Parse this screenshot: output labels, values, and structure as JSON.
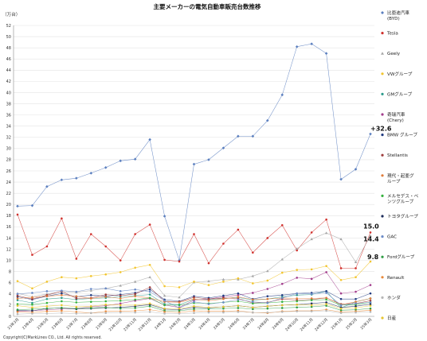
{
  "chart_data": {
    "type": "line",
    "title": "主要メーカーの電気自動車販売台数推移",
    "ylabel": "（万台）",
    "xlabel": "",
    "ylim": [
      0,
      52
    ],
    "yticks": [
      0,
      2,
      4,
      6,
      8,
      10,
      12,
      14,
      16,
      18,
      20,
      22,
      24,
      26,
      28,
      30,
      32,
      34,
      36,
      38,
      40,
      42,
      44,
      46,
      48,
      50,
      52
    ],
    "grid": "horizontal",
    "legend": "right",
    "copyright": "Copyright(C)MarkLines CO., Ltd. All rights reserved.",
    "categories": [
      "23年3月",
      "23年4月",
      "23年5月",
      "23年6月",
      "23年7月",
      "23年8月",
      "23年9月",
      "23年10月",
      "23年11月",
      "23年12月",
      "24年1月",
      "24年2月",
      "24年3月",
      "24年4月",
      "24年5月",
      "24年6月",
      "24年7月",
      "24年8月",
      "24年9月",
      "24年10月",
      "24年11月",
      "24年12月",
      "25年1月",
      "25年2月",
      "25年3月"
    ],
    "annotations": [
      {
        "text": "+32.6",
        "series": "比亜迪汽車(BYD)",
        "index": 24
      },
      {
        "text": "15.0",
        "series": "Tesla",
        "index": 24
      },
      {
        "text": "14.4",
        "series": "Geely",
        "index": 24
      },
      {
        "text": "9.8",
        "series": "VWグループ",
        "index": 24
      }
    ],
    "series": [
      {
        "name": "比亜迪汽車",
        "name2": "(BYD)",
        "color": "#5b7fbf",
        "marker": "diamond",
        "values": [
          19.7,
          19.8,
          23.2,
          24.4,
          24.7,
          25.6,
          26.6,
          27.8,
          28.1,
          31.6,
          17.9,
          10.0,
          27.2,
          28.0,
          30.1,
          32.2,
          32.2,
          35.0,
          39.6,
          48.2,
          48.7,
          47.0,
          24.5,
          26.3,
          32.6
        ]
      },
      {
        "name": "Tesla",
        "color": "#d0312d",
        "marker": "circle",
        "values": [
          18.2,
          11.0,
          12.5,
          17.5,
          10.3,
          14.7,
          12.5,
          10.0,
          14.7,
          16.4,
          10.1,
          9.8,
          14.7,
          9.5,
          13.0,
          15.5,
          11.4,
          14.0,
          16.3,
          11.8,
          15.0,
          17.3,
          8.6,
          8.6,
          15.0
        ]
      },
      {
        "name": "Geely",
        "color": "#a6a6a6",
        "marker": "triangle",
        "values": [
          4.1,
          3.5,
          4.0,
          4.4,
          4.3,
          4.6,
          5.0,
          5.5,
          6.2,
          7.0,
          3.7,
          3.4,
          6.1,
          6.3,
          6.6,
          6.6,
          7.2,
          8.1,
          10.2,
          12.1,
          13.8,
          14.9,
          13.8,
          9.7,
          14.4
        ]
      },
      {
        "name": "VWグループ",
        "color": "#f2c52e",
        "marker": "circle",
        "values": [
          6.3,
          5.0,
          6.2,
          7.0,
          6.8,
          7.2,
          7.5,
          7.9,
          8.7,
          9.2,
          5.4,
          5.2,
          6.2,
          5.6,
          6.2,
          6.8,
          5.9,
          6.4,
          7.8,
          8.3,
          8.4,
          9.0,
          6.5,
          7.0,
          9.8
        ]
      },
      {
        "name": "GMグループ",
        "color": "#2e9b8c",
        "marker": "circle",
        "values": [
          2.9,
          2.4,
          3.1,
          3.3,
          3.0,
          3.2,
          3.3,
          3.5,
          3.7,
          3.9,
          2.2,
          2.1,
          3.0,
          3.0,
          3.2,
          3.4,
          2.9,
          3.1,
          3.5,
          3.8,
          3.9,
          4.5,
          1.5,
          2.6,
          3.2
        ]
      },
      {
        "name": "奇瑞汽車",
        "name2": "(Chery)",
        "color": "#a23c8c",
        "marker": "circle",
        "values": [
          0.9,
          1.0,
          1.2,
          1.3,
          1.4,
          1.7,
          1.9,
          2.3,
          2.8,
          3.2,
          2.0,
          1.6,
          2.9,
          3.1,
          3.5,
          3.8,
          4.2,
          4.9,
          5.8,
          6.9,
          6.7,
          7.9,
          4.1,
          4.4,
          5.6
        ]
      },
      {
        "name": "BMW グループ",
        "color": "#1f3a80",
        "marker": "circle",
        "values": [
          3.5,
          3.0,
          3.6,
          4.1,
          3.5,
          3.8,
          3.6,
          3.9,
          4.2,
          4.8,
          3.0,
          2.7,
          3.6,
          3.3,
          3.7,
          4.1,
          3.1,
          3.6,
          3.8,
          4.1,
          4.2,
          4.5,
          3.1,
          3.1,
          4.1
        ]
      },
      {
        "name": "Stellantis",
        "color": "#9e3b3b",
        "marker": "circle",
        "values": [
          3.7,
          3.1,
          3.8,
          4.5,
          3.2,
          3.3,
          3.9,
          3.7,
          4.0,
          5.2,
          2.7,
          2.6,
          3.4,
          3.1,
          3.3,
          3.2,
          2.4,
          2.5,
          3.1,
          2.9,
          3.0,
          3.3,
          2.2,
          2.3,
          2.8
        ]
      },
      {
        "name": "現代・起亜グ",
        "name2": "ループ",
        "color": "#e07b39",
        "marker": "circle",
        "values": [
          3.2,
          3.4,
          3.6,
          3.8,
          3.6,
          3.2,
          3.5,
          3.2,
          3.6,
          3.3,
          2.6,
          2.5,
          3.1,
          2.8,
          3.1,
          3.5,
          3.0,
          3.1,
          3.3,
          3.2,
          3.2,
          3.3,
          2.1,
          2.6,
          3.2
        ]
      },
      {
        "name": "メルセデス・ベ",
        "name2": "ンツグループ",
        "color": "#35b23f",
        "marker": "circle",
        "values": [
          2.2,
          2.1,
          2.4,
          2.7,
          2.5,
          2.6,
          2.7,
          2.8,
          3.0,
          3.3,
          2.0,
          2.0,
          2.4,
          2.3,
          2.5,
          2.7,
          2.3,
          2.4,
          2.6,
          2.7,
          2.9,
          3.0,
          2.0,
          2.1,
          2.5
        ]
      },
      {
        "name": "トヨタグループ",
        "color": "#1c2b5a",
        "marker": "circle",
        "values": [
          1.1,
          1.0,
          1.4,
          1.5,
          1.3,
          1.4,
          1.5,
          1.6,
          1.8,
          2.1,
          1.3,
          1.2,
          1.6,
          1.5,
          1.7,
          1.9,
          1.6,
          1.8,
          2.0,
          2.1,
          2.3,
          2.5,
          1.6,
          1.8,
          2.2
        ]
      },
      {
        "name": "GAC",
        "color": "#6b8bc7",
        "marker": "circle",
        "values": [
          4.0,
          4.2,
          4.5,
          4.6,
          4.4,
          4.9,
          5.0,
          4.5,
          4.8,
          4.4,
          2.8,
          1.5,
          2.6,
          2.2,
          2.5,
          3.0,
          2.6,
          2.4,
          3.3,
          4.1,
          4.0,
          4.2,
          2.0,
          2.3,
          2.5
        ]
      },
      {
        "name": "Fordグループ",
        "color": "#2f9e44",
        "marker": "circle",
        "values": [
          1.2,
          1.3,
          1.4,
          1.5,
          1.4,
          1.5,
          1.6,
          1.4,
          1.5,
          1.8,
          1.0,
          1.0,
          1.3,
          1.3,
          1.4,
          1.5,
          1.3,
          1.4,
          1.5,
          1.6,
          1.7,
          1.9,
          1.1,
          1.2,
          1.4
        ]
      },
      {
        "name": "Renault",
        "color": "#e8893a",
        "marker": "circle",
        "values": [
          0.8,
          0.7,
          0.9,
          1.0,
          0.8,
          0.6,
          0.9,
          0.9,
          1.0,
          1.2,
          0.8,
          0.7,
          1.0,
          0.9,
          0.9,
          1.0,
          0.7,
          0.6,
          0.9,
          1.0,
          1.0,
          1.2,
          0.8,
          0.9,
          1.1
        ]
      },
      {
        "name": "ホンダ",
        "color": "#b7b7b7",
        "marker": "circle",
        "values": [
          0.4,
          0.5,
          0.5,
          0.6,
          0.5,
          0.6,
          0.6,
          0.7,
          0.7,
          0.8,
          0.5,
          0.5,
          0.6,
          0.7,
          0.7,
          0.8,
          0.7,
          0.7,
          0.8,
          0.9,
          0.9,
          1.0,
          0.6,
          0.7,
          0.8
        ]
      },
      {
        "name": "日産",
        "color": "#e6c531",
        "marker": "circle",
        "values": [
          1.9,
          1.6,
          1.8,
          2.0,
          1.7,
          1.8,
          2.1,
          2.0,
          2.0,
          2.3,
          1.4,
          1.4,
          1.8,
          1.6,
          1.7,
          1.9,
          1.6,
          1.8,
          2.0,
          2.1,
          2.0,
          2.2,
          1.4,
          1.5,
          1.9
        ]
      }
    ]
  }
}
